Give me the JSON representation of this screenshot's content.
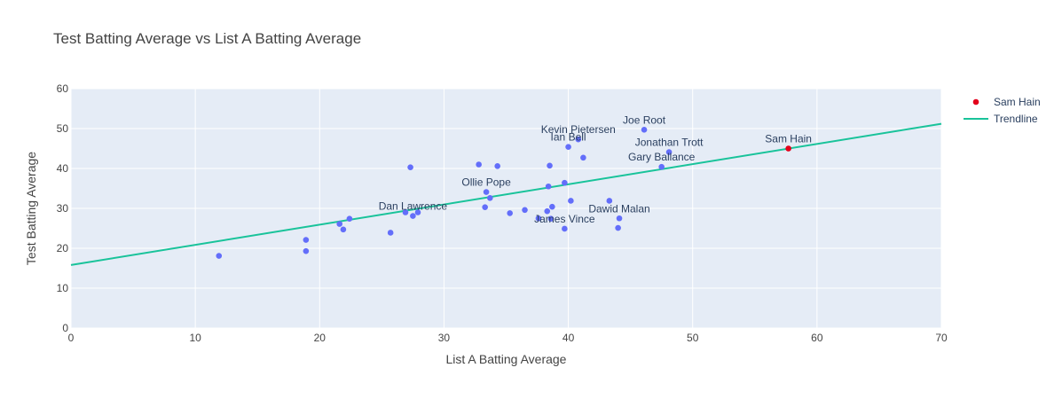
{
  "chart_data": {
    "type": "scatter",
    "title": "Test Batting Average vs List A Batting Average",
    "xlabel": "List A Batting Average",
    "ylabel": "Test Batting Average",
    "xlim": [
      0,
      70
    ],
    "ylim": [
      0,
      60
    ],
    "x_ticks": [
      "0",
      "10",
      "20",
      "30",
      "40",
      "50",
      "60",
      "70"
    ],
    "y_ticks": [
      "0",
      "10",
      "20",
      "30",
      "40",
      "50",
      "60"
    ],
    "grid": true,
    "legend_position": "top-right",
    "colors": {
      "points": "#636efa",
      "highlight": "#e3001b",
      "trendline": "#19c39a",
      "plot_bg": "#e5ecf6"
    },
    "series": [
      {
        "name": "",
        "points": [
          [
            11.9,
            18.1
          ],
          [
            18.9,
            19.3
          ],
          [
            18.9,
            22.1
          ],
          [
            21.6,
            26.1
          ],
          [
            21.9,
            24.7
          ],
          [
            22.4,
            27.4
          ],
          [
            25.7,
            23.9
          ],
          [
            26.9,
            29.0
          ],
          [
            27.3,
            40.3
          ],
          [
            27.5,
            28.1
          ],
          [
            27.9,
            29.0
          ],
          [
            32.8,
            41.0
          ],
          [
            33.3,
            30.3
          ],
          [
            33.4,
            34.1
          ],
          [
            33.7,
            32.6
          ],
          [
            34.3,
            40.6
          ],
          [
            35.3,
            28.8
          ],
          [
            36.5,
            29.6
          ],
          [
            37.6,
            27.5
          ],
          [
            38.3,
            29.3
          ],
          [
            38.4,
            35.5
          ],
          [
            38.5,
            40.7
          ],
          [
            38.6,
            27.4
          ],
          [
            38.7,
            30.4
          ],
          [
            39.7,
            36.4
          ],
          [
            39.7,
            24.9
          ],
          [
            40.0,
            45.4
          ],
          [
            40.2,
            31.9
          ],
          [
            40.8,
            47.3
          ],
          [
            41.2,
            42.7
          ],
          [
            43.3,
            31.9
          ],
          [
            44.0,
            25.1
          ],
          [
            44.1,
            27.5
          ],
          [
            46.1,
            49.7
          ],
          [
            47.5,
            40.4
          ],
          [
            48.1,
            44.1
          ]
        ]
      },
      {
        "name": "Sam Hain",
        "points": [
          [
            57.7,
            45.0
          ]
        ]
      }
    ],
    "trendline": {
      "name": "Trendline",
      "x": [
        0,
        70
      ],
      "y": [
        15.8,
        51.2
      ]
    },
    "annotations": [
      {
        "text": "Joe Root",
        "x": 46.1,
        "y": 49.7
      },
      {
        "text": "Kevin Pietersen",
        "x": 40.8,
        "y": 47.3
      },
      {
        "text": "Ian Bell",
        "x": 40.0,
        "y": 45.4
      },
      {
        "text": "Jonathan Trott",
        "x": 48.1,
        "y": 44.1
      },
      {
        "text": "Gary Ballance",
        "x": 47.5,
        "y": 40.4
      },
      {
        "text": "Sam Hain",
        "x": 57.7,
        "y": 45.0
      },
      {
        "text": "Ollie Pope",
        "x": 33.4,
        "y": 34.1
      },
      {
        "text": "Dan Lawrence",
        "x": 27.5,
        "y": 28.1
      },
      {
        "text": "Dawid Malan",
        "x": 44.1,
        "y": 27.5
      },
      {
        "text": "James Vince",
        "x": 39.7,
        "y": 24.9
      }
    ]
  }
}
